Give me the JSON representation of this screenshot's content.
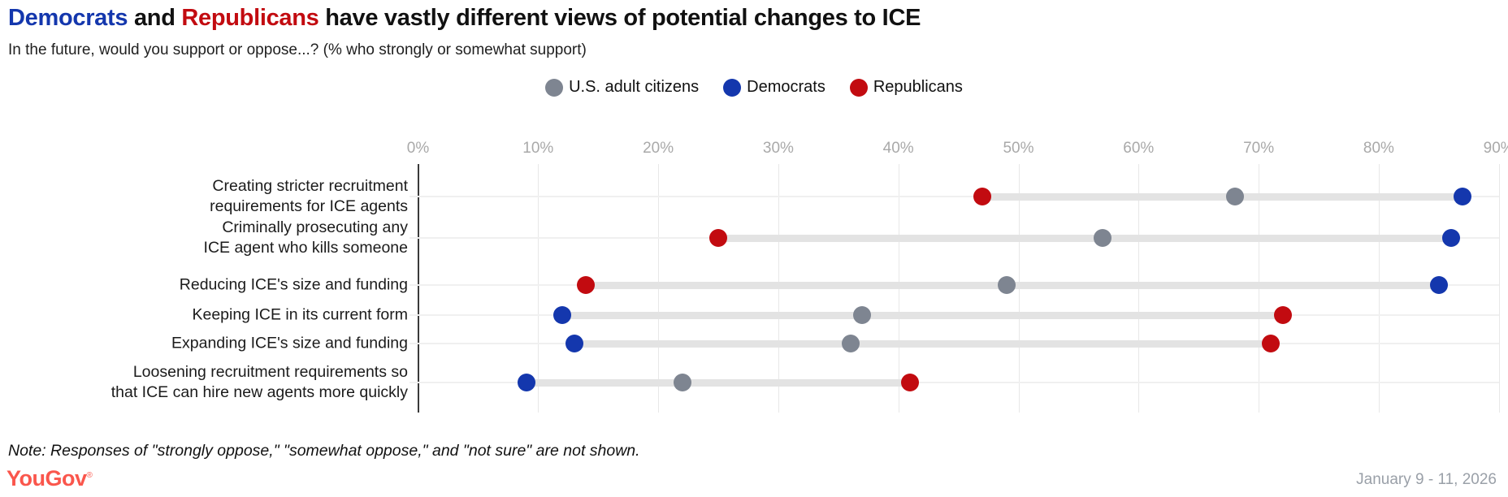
{
  "header": {
    "title_democrats": "Democrats",
    "title_and": " and ",
    "title_republicans": "Republicans",
    "title_rest": " have vastly different views of potential changes to ICE",
    "subtitle": "In the future, would you support or oppose...? (% who strongly or somewhat support)"
  },
  "legend": {
    "items": [
      {
        "key": "adults",
        "label": "U.S. adult citizens",
        "color": "#7e8591"
      },
      {
        "key": "democrats",
        "label": "Democrats",
        "color": "#1437ad"
      },
      {
        "key": "republicans",
        "label": "Republicans",
        "color": "#c20b10"
      }
    ]
  },
  "chart_data": {
    "type": "scatter",
    "subtype": "dumbbell-dot-plot",
    "title": "Democrats and Republicans have vastly different views of potential changes to ICE",
    "subtitle": "In the future, would you support or oppose...? (% who strongly or somewhat support)",
    "xlabel": "",
    "ylabel": "",
    "xlim": [
      0,
      90
    ],
    "x_ticks": [
      "0%",
      "10%",
      "20%",
      "30%",
      "40%",
      "50%",
      "60%",
      "70%",
      "80%",
      "90%"
    ],
    "grid": "vertical",
    "legend_position": "top-center",
    "series_names": [
      "U.S. adult citizens",
      "Democrats",
      "Republicans"
    ],
    "categories": [
      "Creating stricter recruitment requirements for ICE agents",
      "Criminally prosecuting any ICE agent who kills someone",
      "Reducing ICE's size and funding",
      "Keeping ICE in its current form",
      "Expanding ICE's size and funding",
      "Loosening recruitment requirements so that ICE can hire new agents more quickly"
    ],
    "rows": [
      {
        "label_lines": [
          "Creating stricter recruitment",
          "requirements for ICE agents"
        ],
        "adults": 68,
        "democrats": 87,
        "republicans": 47
      },
      {
        "label_lines": [
          "Criminally prosecuting any",
          "ICE agent who kills someone"
        ],
        "adults": 57,
        "democrats": 86,
        "republicans": 25
      },
      {
        "label_lines": [
          "Reducing ICE's size and funding"
        ],
        "adults": 49,
        "democrats": 85,
        "republicans": 14
      },
      {
        "label_lines": [
          "Keeping ICE in its current form"
        ],
        "adults": 37,
        "democrats": 12,
        "republicans": 72
      },
      {
        "label_lines": [
          "Expanding ICE's size and funding"
        ],
        "adults": 36,
        "democrats": 13,
        "republicans": 71
      },
      {
        "label_lines": [
          "Loosening recruitment requirements so",
          "that ICE can hire new agents more quickly"
        ],
        "adults": 22,
        "democrats": 9,
        "republicans": 41
      }
    ]
  },
  "note": "Note: Responses of \"strongly oppose,\" \"somewhat oppose,\" and \"not sure\" are not shown.",
  "footer": {
    "logo": "YouGov",
    "logo_reg": "®",
    "date": "January 9 - 11, 2026"
  },
  "colors": {
    "adults": "#7e8591",
    "democrats": "#1437ad",
    "republicans": "#c20b10",
    "title_blue": "#1437ad",
    "title_red": "#c20b10",
    "axis_text": "#a9a9a9",
    "gridline": "#e8e8e8",
    "axis_line": "#3a3a3a",
    "row_line": "#f0f0f0",
    "connector": "#e3e3e3",
    "logo_coral": "#fa564c",
    "date_gray": "#9aa0a8"
  }
}
